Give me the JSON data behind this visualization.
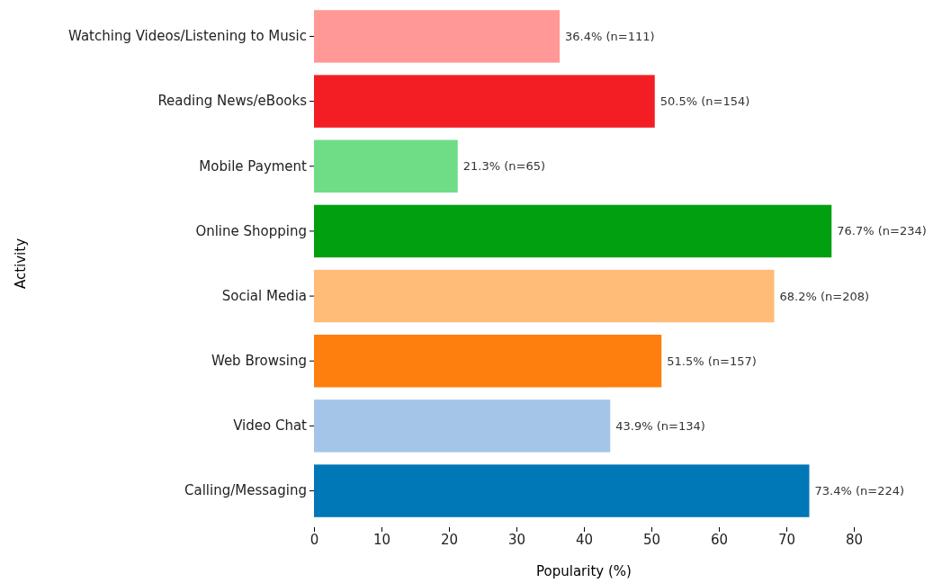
{
  "chart_data": {
    "type": "bar",
    "orientation": "horizontal",
    "xlabel": "Popularity (%)",
    "ylabel": "Activity",
    "categories": [
      "Watching Videos/Listening to Music",
      "Reading News/eBooks",
      "Mobile Payment",
      "Online Shopping",
      "Social Media",
      "Web Browsing",
      "Video Chat",
      "Calling/Messaging"
    ],
    "values": [
      36.4,
      50.5,
      21.3,
      76.7,
      68.2,
      51.5,
      43.9,
      73.4
    ],
    "colors": [
      "#ff9896",
      "#f21e24",
      "#6edd86",
      "#00a011",
      "#ffbb78",
      "#ff7f0e",
      "#a4c5e8",
      "#0077b6"
    ],
    "value_labels": [
      "36.4% (n=111)",
      "50.5% (n=154)",
      "21.3% (n=65)",
      "76.7% (n=234)",
      "68.2% (n=208)",
      "51.5% (n=157)",
      "43.9% (n=134)",
      "73.4% (n=224)"
    ],
    "xlim": [
      0,
      80
    ],
    "xticks": [
      0,
      10,
      20,
      30,
      40,
      50,
      60,
      70,
      80
    ],
    "grid": false
  }
}
